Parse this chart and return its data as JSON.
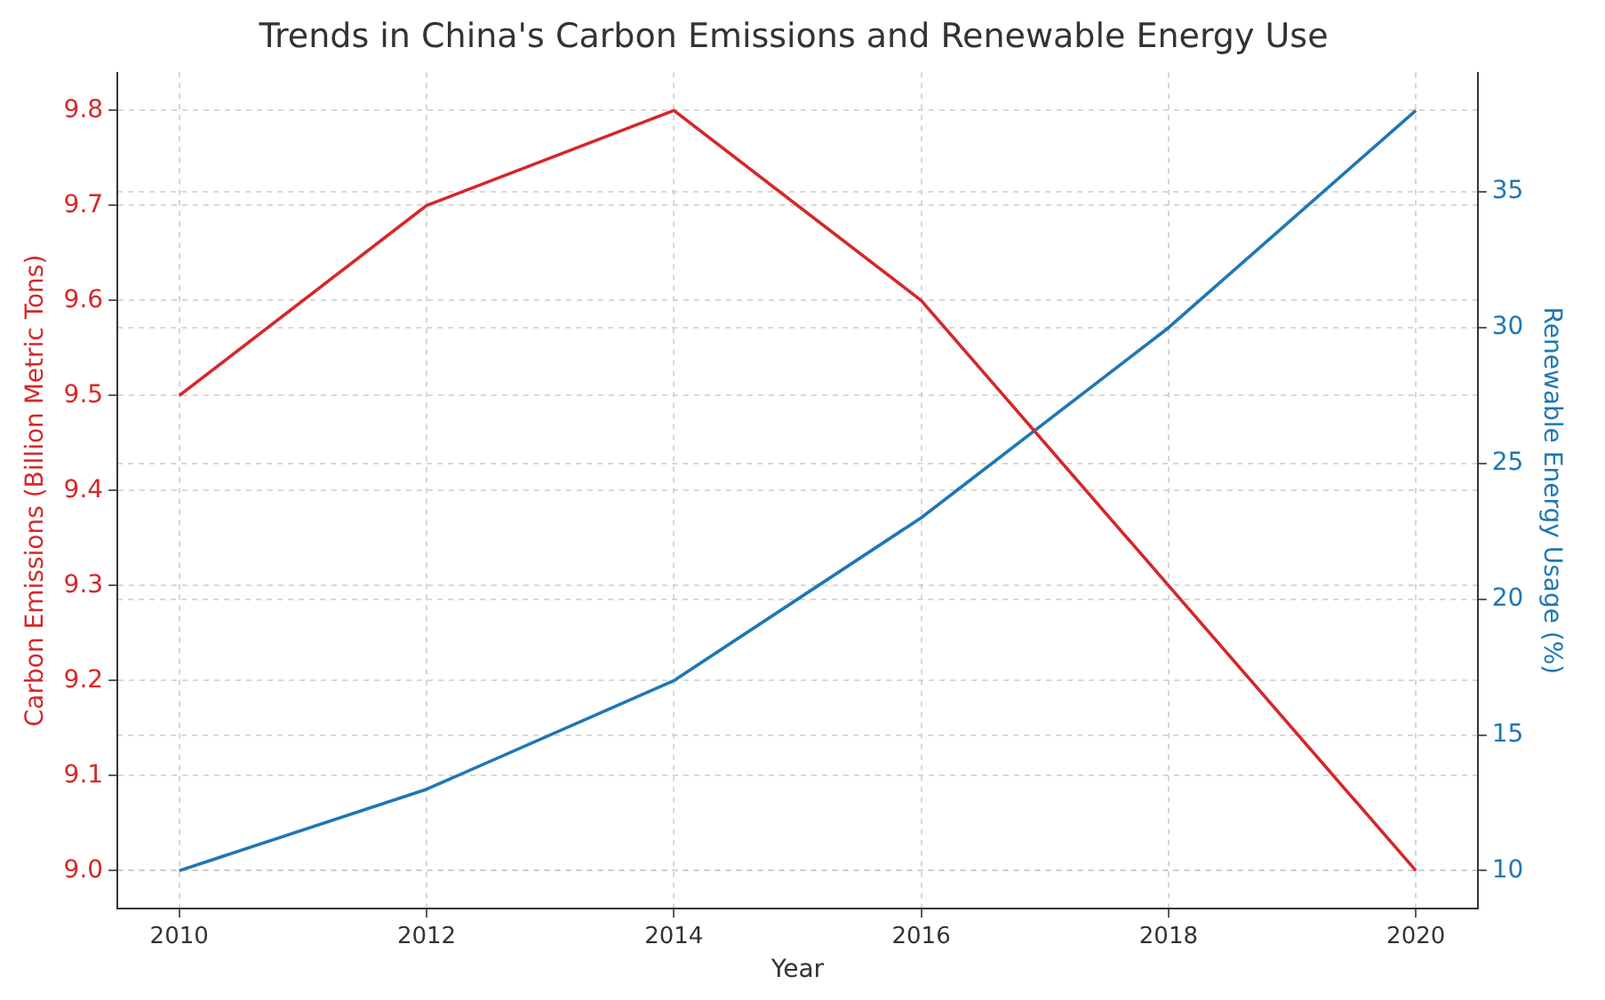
{
  "chart_data": {
    "type": "line",
    "title": "Trends in China's Carbon Emissions and Renewable Energy Use",
    "xlabel": "Year",
    "ylabel": "Carbon Emissions (Billion Metric Tons)",
    "y2label": "Renewable Energy Usage (%)",
    "x": [
      2010,
      2012,
      2014,
      2016,
      2018,
      2020
    ],
    "series": [
      {
        "color": "#d62728",
        "values": [
          9.5,
          9.7,
          9.8,
          9.6,
          9.3,
          9.0
        ]
      },
      {
        "color": "#1f77b4",
        "axis": "y2",
        "values": [
          10,
          13,
          17,
          23,
          30,
          38
        ]
      }
    ],
    "xlim": [
      2009.5,
      2020.5
    ],
    "xticks": [
      2010,
      2012,
      2014,
      2016,
      2018,
      2020
    ],
    "ylim": [
      8.96,
      9.84
    ],
    "yticks": [
      {
        "value": 9.0,
        "label": "9.0"
      },
      {
        "value": 9.1,
        "label": "9.1"
      },
      {
        "value": 9.2,
        "label": "9.2"
      },
      {
        "value": 9.3,
        "label": "9.3"
      },
      {
        "value": 9.4,
        "label": "9.4"
      },
      {
        "value": 9.5,
        "label": "9.5"
      },
      {
        "value": 9.6,
        "label": "9.6"
      },
      {
        "value": 9.7,
        "label": "9.7"
      },
      {
        "value": 9.8,
        "label": "9.8"
      }
    ],
    "y2lim": [
      8.6,
      39.4
    ],
    "y2ticks": [
      10,
      15,
      20,
      25,
      30,
      35
    ],
    "grid": true,
    "legend": false,
    "marker": "none",
    "line_style": "solid"
  }
}
